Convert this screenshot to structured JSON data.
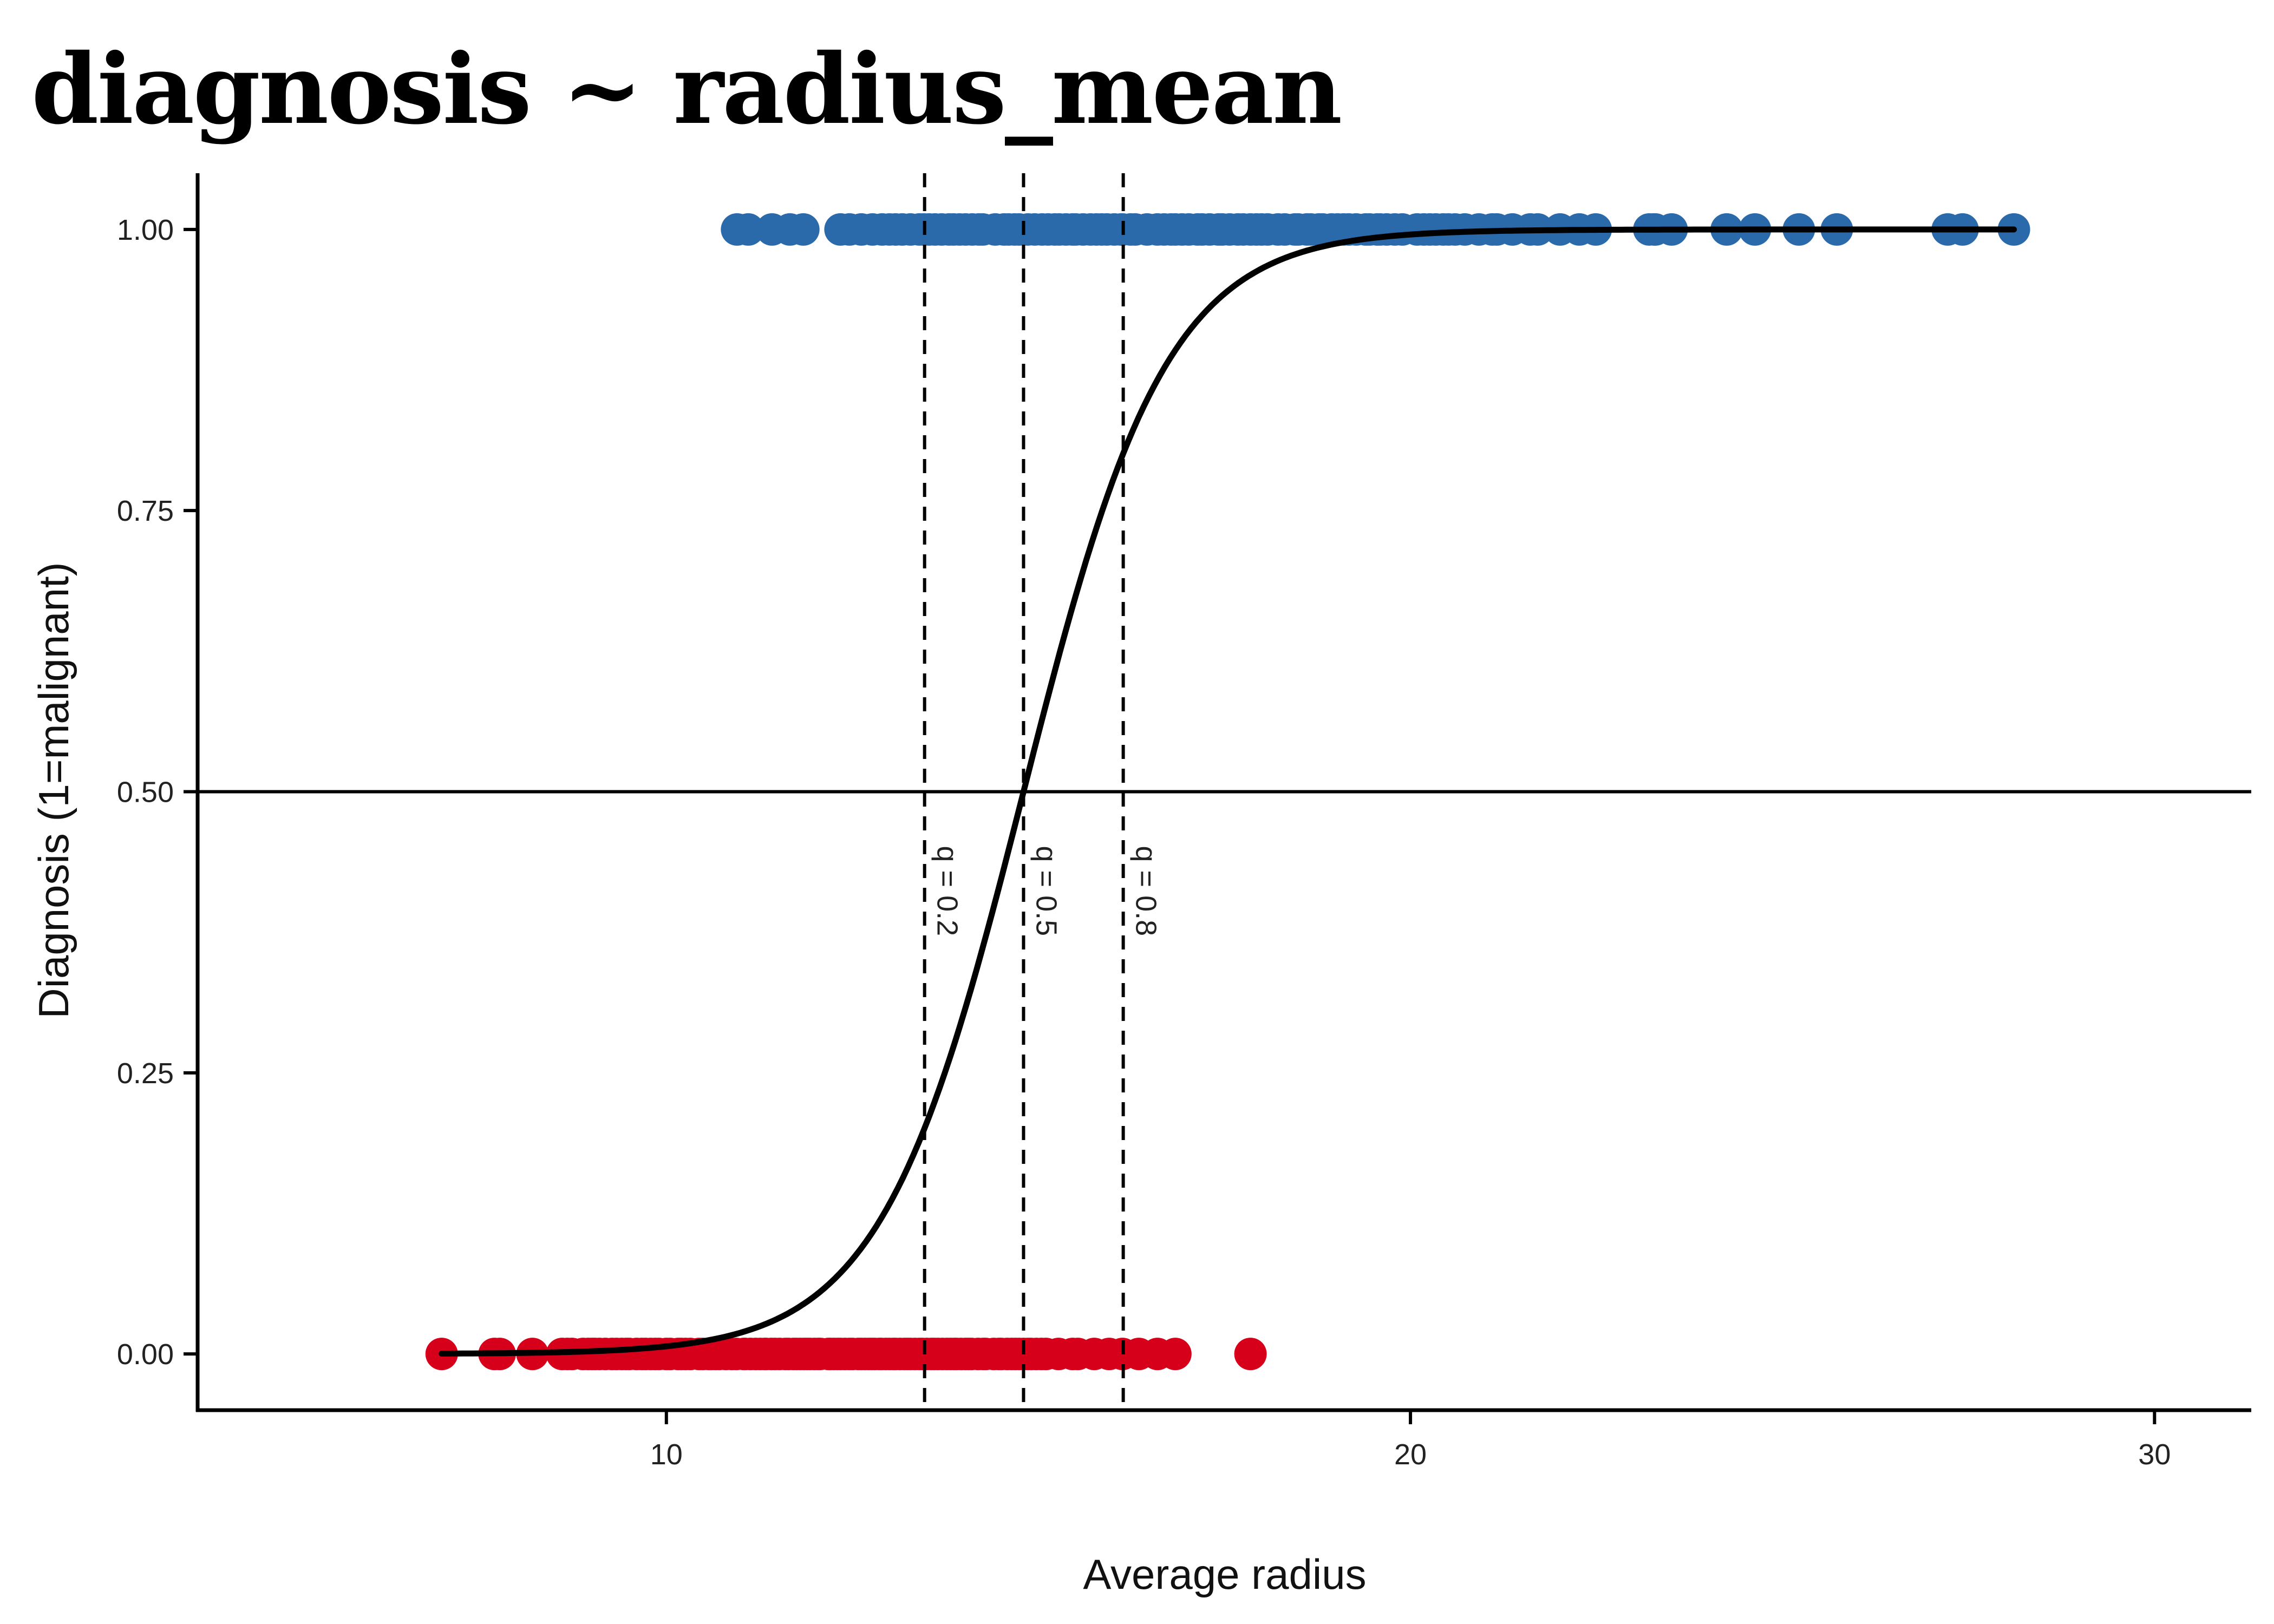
{
  "chart_data": {
    "type": "scatter",
    "title": "diagnosis ~ radius_mean",
    "xlabel": "Average radius",
    "ylabel": "Diagnosis (1=malignant)",
    "xlim": [
      3.7,
      31.3
    ],
    "ylim": [
      -0.05,
      1.05
    ],
    "x_ticks": [
      10,
      20,
      30
    ],
    "x_tick_labels": [
      "10",
      "20",
      "30"
    ],
    "y_ticks": [
      0,
      0.25,
      0.5,
      0.75,
      1.0
    ],
    "y_tick_labels": [
      "0.00",
      "0.25",
      "0.50",
      "0.75",
      "1.00"
    ],
    "grid": false,
    "colors": {
      "malignant": "#2B6AAA",
      "benign": "#D7001B",
      "curve": "#000000",
      "reference": "#000000"
    },
    "series": [
      {
        "y": 1,
        "color": "#2B6AAA",
        "x": [
          10.95,
          11.1,
          11.42,
          11.66,
          11.84,
          12.34,
          12.46,
          12.62,
          12.77,
          12.9,
          13.0,
          13.08,
          13.17,
          13.28,
          13.4,
          13.46,
          13.53,
          13.61,
          13.7,
          13.8,
          13.86,
          13.94,
          14.02,
          14.11,
          14.2,
          14.25,
          14.42,
          14.54,
          14.6,
          14.68,
          14.74,
          14.86,
          14.95,
          15.05,
          15.13,
          15.22,
          15.28,
          15.37,
          15.46,
          15.5,
          15.6,
          15.7,
          15.78,
          15.85,
          15.92,
          16.02,
          16.11,
          16.13,
          16.24,
          16.3,
          16.46,
          16.6,
          16.69,
          16.78,
          16.84,
          16.93,
          17.02,
          17.14,
          17.2,
          17.3,
          17.42,
          17.47,
          17.57,
          17.68,
          17.75,
          17.85,
          17.93,
          18.0,
          18.08,
          18.22,
          18.31,
          18.45,
          18.49,
          18.61,
          18.66,
          18.77,
          18.82,
          18.94,
          19.02,
          19.1,
          19.17,
          19.27,
          19.4,
          19.45,
          19.55,
          19.59,
          19.68,
          19.79,
          19.89,
          20.09,
          20.18,
          20.26,
          20.34,
          20.44,
          20.51,
          20.6,
          20.73,
          20.92,
          21.1,
          21.16,
          21.37,
          21.61,
          21.71,
          22.01,
          22.27,
          22.49,
          23.21,
          23.27,
          23.29,
          23.51,
          24.25,
          24.63,
          25.22,
          25.73,
          27.22,
          27.42,
          28.11
        ]
      },
      {
        "y": 0,
        "color": "#D7001B",
        "x": [
          6.98,
          7.69,
          7.76,
          8.2,
          8.6,
          8.67,
          8.73,
          8.88,
          8.95,
          9.0,
          9.04,
          9.1,
          9.18,
          9.27,
          9.33,
          9.4,
          9.46,
          9.5,
          9.6,
          9.67,
          9.72,
          9.79,
          9.85,
          9.9,
          10.0,
          10.05,
          10.16,
          10.2,
          10.26,
          10.32,
          10.44,
          10.49,
          10.57,
          10.6,
          10.66,
          10.71,
          10.8,
          10.88,
          10.94,
          11.04,
          11.06,
          11.13,
          11.2,
          11.26,
          11.32,
          11.34,
          11.41,
          11.46,
          11.52,
          11.6,
          11.64,
          11.71,
          11.75,
          11.8,
          11.85,
          11.89,
          11.93,
          11.99,
          12.04,
          12.07,
          12.18,
          12.2,
          12.25,
          12.3,
          12.34,
          12.4,
          12.46,
          12.5,
          12.58,
          12.62,
          12.67,
          12.72,
          12.76,
          12.8,
          12.86,
          12.89,
          12.95,
          13.0,
          13.05,
          13.08,
          13.14,
          13.2,
          13.24,
          13.28,
          13.34,
          13.4,
          13.44,
          13.5,
          13.56,
          13.6,
          13.65,
          13.71,
          13.77,
          13.82,
          13.87,
          13.9,
          13.96,
          14.02,
          14.06,
          14.1,
          14.19,
          14.26,
          14.29,
          14.4,
          14.47,
          14.5,
          14.58,
          14.64,
          14.69,
          14.74,
          14.8,
          14.86,
          14.9,
          14.97,
          15.04,
          15.1,
          15.27,
          15.46,
          15.53,
          15.75,
          15.95,
          16.13,
          16.35,
          16.6,
          16.84,
          17.85
        ]
      }
    ],
    "fit_curve": {
      "model": "logistic",
      "x_range": [
        6.98,
        28.11
      ]
    },
    "hline": {
      "y": 0.5
    },
    "quantile_lines": [
      {
        "x": 13.47,
        "label": "q = 0.2"
      },
      {
        "x": 14.8,
        "label": "q = 0.5"
      },
      {
        "x": 16.14,
        "label": "q = 0.8"
      }
    ]
  }
}
